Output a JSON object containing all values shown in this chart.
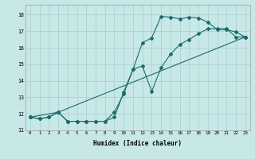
{
  "xlabel": "Humidex (Indice chaleur)",
  "bg_color": "#c8e8e8",
  "grid_color": "#a8cece",
  "line_color": "#1a6b6b",
  "xlim": [
    -0.5,
    23.5
  ],
  "ylim": [
    11.0,
    18.6
  ],
  "xticks": [
    0,
    1,
    2,
    3,
    4,
    5,
    6,
    7,
    8,
    9,
    10,
    11,
    12,
    13,
    14,
    15,
    16,
    17,
    18,
    19,
    20,
    21,
    22,
    23
  ],
  "yticks": [
    11,
    12,
    13,
    14,
    15,
    16,
    17,
    18
  ],
  "line1_x": [
    0,
    1,
    2,
    3,
    4,
    5,
    6,
    7,
    8,
    9,
    10,
    11,
    12,
    13,
    14,
    15,
    16,
    17,
    18,
    19,
    20,
    21,
    22,
    23
  ],
  "line1_y": [
    11.8,
    11.7,
    11.8,
    12.1,
    11.55,
    11.55,
    11.55,
    11.55,
    11.55,
    11.8,
    13.3,
    14.7,
    16.3,
    16.6,
    17.9,
    17.85,
    17.75,
    17.85,
    17.8,
    17.55,
    17.1,
    17.1,
    16.95,
    16.65
  ],
  "line2_x": [
    0,
    1,
    2,
    3,
    4,
    5,
    6,
    7,
    8,
    9,
    10,
    11,
    12,
    13,
    14,
    15,
    16,
    17,
    18,
    19,
    20,
    21,
    22,
    23
  ],
  "line2_y": [
    11.8,
    11.7,
    11.8,
    12.1,
    11.55,
    11.55,
    11.55,
    11.55,
    11.55,
    12.1,
    13.2,
    14.7,
    14.9,
    13.35,
    14.8,
    15.6,
    16.2,
    16.5,
    16.85,
    17.15,
    17.15,
    17.15,
    16.65,
    16.65
  ],
  "line3_x": [
    0,
    3,
    23
  ],
  "line3_y": [
    11.8,
    12.1,
    16.65
  ]
}
